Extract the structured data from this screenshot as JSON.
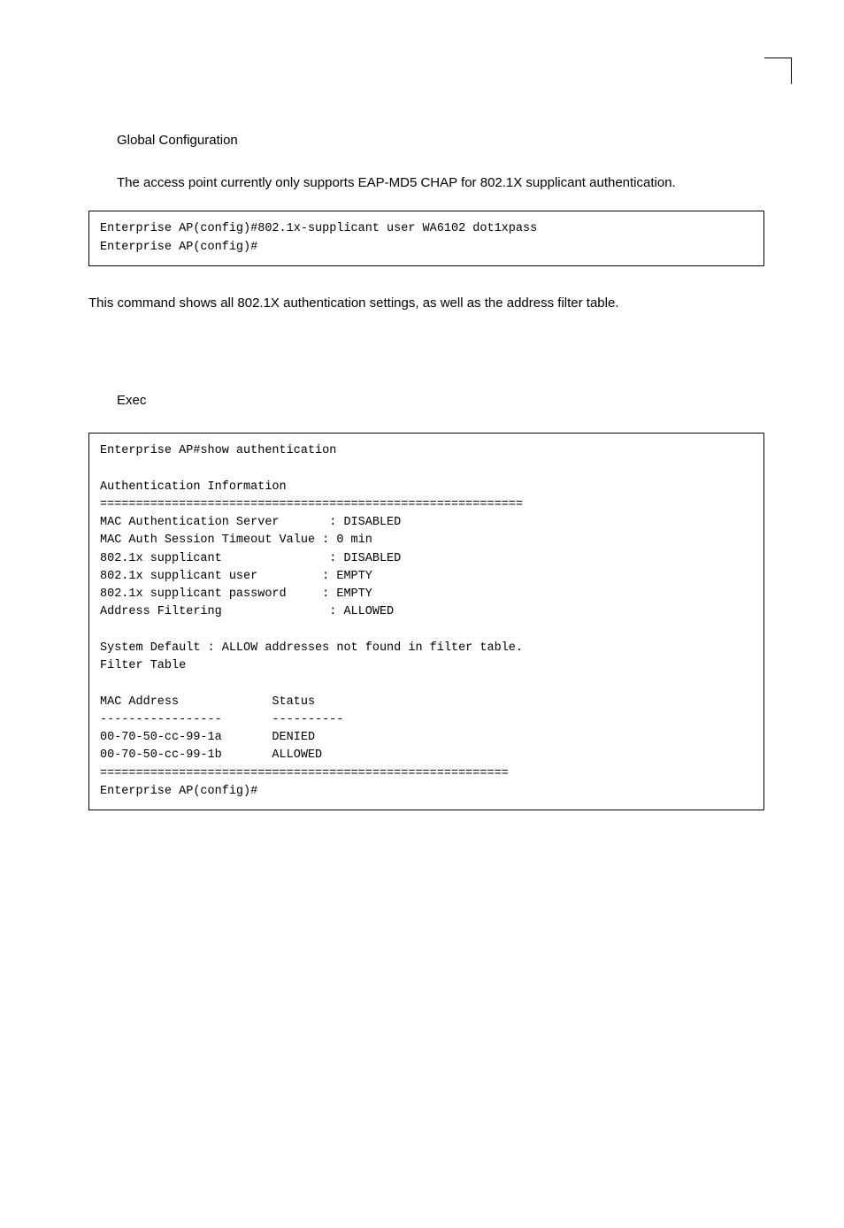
{
  "section1": {
    "heading": "Global Configuration",
    "body": "The access point currently only supports EAP-MD5 CHAP for 802.1X supplicant authentication."
  },
  "code1": {
    "line1": "Enterprise AP(config)#802.1x-supplicant user WA6102 dot1xpass",
    "line2": "Enterprise AP(config)#"
  },
  "description": "This command shows all 802.1X authentication settings, as well as the address filter table.",
  "section2": {
    "heading": "Exec"
  },
  "code2": {
    "line1": "Enterprise AP#show authentication",
    "line2": "",
    "line3": "Authentication Information",
    "line4": "===========================================================",
    "line5": "MAC Authentication Server       : DISABLED",
    "line6": "MAC Auth Session Timeout Value : 0 min",
    "line7": "802.1x supplicant               : DISABLED",
    "line8": "802.1x supplicant user         : EMPTY",
    "line9": "802.1x supplicant password     : EMPTY",
    "line10": "Address Filtering               : ALLOWED",
    "line11": "",
    "line12": "System Default : ALLOW addresses not found in filter table.",
    "line13": "Filter Table",
    "line14": "",
    "line15": "MAC Address             Status",
    "line16": "-----------------       ----------",
    "line17": "00-70-50-cc-99-1a       DENIED",
    "line18": "00-70-50-cc-99-1b       ALLOWED",
    "line19": "=========================================================",
    "line20": "Enterprise AP(config)#"
  }
}
